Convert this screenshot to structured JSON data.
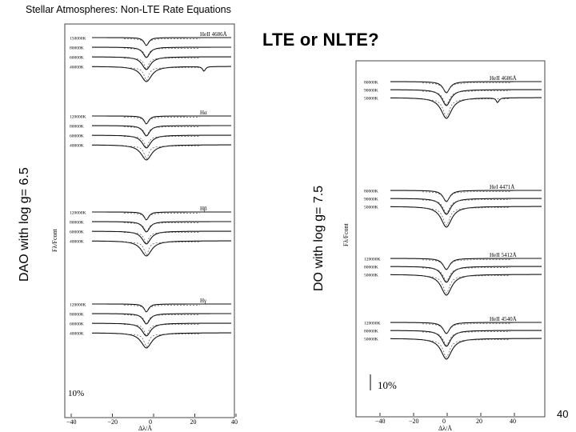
{
  "slide": {
    "header": "Stellar Atmospheres:  Non-LTE Rate Equations",
    "title": "LTE or NLTE?",
    "page_number": "40"
  },
  "left_panel": {
    "side_label": "DAO with log g= 6.5",
    "y_axis_label": "Fλ/Fcont",
    "x_axis_label": "Δλ/Å",
    "x_ticks": [
      "−40",
      "−20",
      "0",
      "20",
      "40"
    ],
    "scale_bar": "10%",
    "groups": [
      {
        "line": "HeII 4686Å",
        "temps": [
          "150000K",
          "80000K",
          "60000K",
          "40000K"
        ]
      },
      {
        "line": "Hα",
        "temps": [
          "120000K",
          "80000K",
          "60000K",
          "40000K"
        ]
      },
      {
        "line": "Hβ",
        "temps": [
          "120000K",
          "80000K",
          "60000K",
          "40000K"
        ]
      },
      {
        "line": "Hγ",
        "temps": [
          "120000K",
          "80000K",
          "60000K",
          "40000K"
        ]
      }
    ]
  },
  "right_panel": {
    "side_label": "DO with log g= 7.5",
    "y_axis_label": "Fλ/Fcont",
    "x_axis_label": "Δλ/Å",
    "x_ticks": [
      "−40",
      "−20",
      "0",
      "20",
      "40"
    ],
    "scale_bar": "10%",
    "groups": [
      {
        "line": "HeII 4686Å",
        "temps": [
          "80000K",
          "90000K",
          "50000K"
        ]
      },
      {
        "line": "HeI 4471Å",
        "temps": [
          "80000K",
          "90000K",
          "50000K"
        ]
      },
      {
        "line": "HeII 5412Å",
        "temps": [
          "120000K",
          "80000K",
          "50000K"
        ]
      },
      {
        "line": "HeII 4540Å",
        "temps": [
          "120000K",
          "80000K",
          "50000K"
        ]
      }
    ]
  }
}
